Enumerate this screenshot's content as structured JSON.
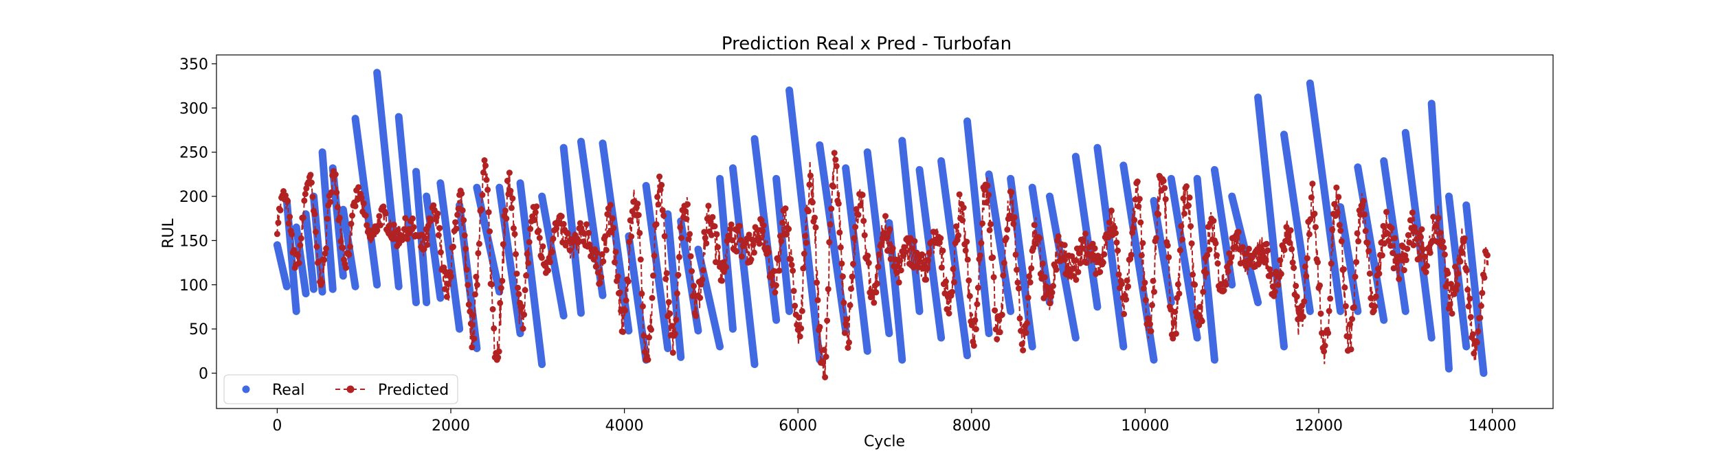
{
  "chart_data": {
    "type": "line",
    "title": "Prediction Real x Pred - Turbofan",
    "xlabel": "Cycle",
    "ylabel": "RUL",
    "xlim": [
      -700,
      14700
    ],
    "ylim": [
      -40,
      360
    ],
    "xticks": [
      0,
      2000,
      4000,
      6000,
      8000,
      10000,
      12000,
      14000
    ],
    "yticks": [
      0,
      50,
      100,
      150,
      200,
      250,
      300,
      350
    ],
    "legend_position": "lower-left",
    "grid": false,
    "colors": {
      "real": "#4169e1",
      "predicted": "#b22222"
    },
    "series": [
      {
        "name": "Real",
        "style": "markers",
        "segments": [
          [
            0,
            145,
            110,
            98
          ],
          [
            110,
            195,
            220,
            70
          ],
          [
            220,
            165,
            330,
            90
          ],
          [
            330,
            180,
            420,
            95
          ],
          [
            420,
            200,
            520,
            92
          ],
          [
            520,
            250,
            640,
            95
          ],
          [
            640,
            232,
            760,
            110
          ],
          [
            760,
            185,
            900,
            98
          ],
          [
            900,
            288,
            1150,
            100
          ],
          [
            1150,
            340,
            1400,
            98
          ],
          [
            1400,
            290,
            1600,
            80
          ],
          [
            1600,
            228,
            1720,
            80
          ],
          [
            1720,
            200,
            1880,
            85
          ],
          [
            1880,
            215,
            2100,
            50
          ],
          [
            2100,
            190,
            2300,
            28
          ],
          [
            2300,
            210,
            2560,
            92
          ],
          [
            2560,
            210,
            2800,
            45
          ],
          [
            2800,
            215,
            3050,
            10
          ],
          [
            3050,
            200,
            3300,
            65
          ],
          [
            3300,
            255,
            3500,
            68
          ],
          [
            3500,
            262,
            3750,
            88
          ],
          [
            3750,
            260,
            4050,
            48
          ],
          [
            4050,
            155,
            4250,
            15
          ],
          [
            4250,
            212,
            4500,
            28
          ],
          [
            4500,
            180,
            4650,
            18
          ],
          [
            4650,
            172,
            4850,
            48
          ],
          [
            4850,
            140,
            5100,
            30
          ],
          [
            5100,
            220,
            5250,
            50
          ],
          [
            5250,
            232,
            5500,
            10
          ],
          [
            5500,
            265,
            5750,
            60
          ],
          [
            5750,
            220,
            5900,
            70
          ],
          [
            5900,
            320,
            6250,
            15
          ],
          [
            6250,
            258,
            6550,
            48
          ],
          [
            6550,
            232,
            6800,
            25
          ],
          [
            6800,
            250,
            7050,
            45
          ],
          [
            7050,
            170,
            7200,
            15
          ],
          [
            7200,
            263,
            7400,
            70
          ],
          [
            7400,
            230,
            7650,
            40
          ],
          [
            7650,
            240,
            7950,
            20
          ],
          [
            7950,
            285,
            8200,
            45
          ],
          [
            8200,
            225,
            8450,
            70
          ],
          [
            8450,
            220,
            8700,
            30
          ],
          [
            8700,
            210,
            8900,
            80
          ],
          [
            8900,
            200,
            9200,
            40
          ],
          [
            9200,
            245,
            9450,
            75
          ],
          [
            9450,
            255,
            9750,
            30
          ],
          [
            9750,
            235,
            10100,
            15
          ],
          [
            10100,
            195,
            10300,
            80
          ],
          [
            10300,
            220,
            10600,
            40
          ],
          [
            10600,
            220,
            10800,
            15
          ],
          [
            10800,
            230,
            11000,
            100
          ],
          [
            11000,
            200,
            11300,
            80
          ],
          [
            11300,
            312,
            11600,
            30
          ],
          [
            11600,
            270,
            11900,
            70
          ],
          [
            11900,
            328,
            12250,
            70
          ],
          [
            12250,
            188,
            12450,
            70
          ],
          [
            12450,
            233,
            12750,
            60
          ],
          [
            12750,
            240,
            13000,
            70
          ],
          [
            13000,
            272,
            13300,
            40
          ],
          [
            13300,
            305,
            13500,
            5
          ],
          [
            13500,
            200,
            13700,
            30
          ],
          [
            13700,
            190,
            13900,
            0
          ]
        ]
      },
      {
        "name": "Predicted",
        "style": "dashed-line-markers",
        "band": [
          [
            0,
            110,
            225
          ],
          [
            600,
            95,
            240
          ],
          [
            1000,
            120,
            230
          ],
          [
            1400,
            90,
            230
          ],
          [
            1800,
            70,
            240
          ],
          [
            2000,
            40,
            230
          ],
          [
            2400,
            0,
            255
          ],
          [
            2800,
            10,
            245
          ],
          [
            3200,
            70,
            240
          ],
          [
            3600,
            50,
            245
          ],
          [
            3900,
            10,
            240
          ],
          [
            4300,
            0,
            225
          ],
          [
            4700,
            20,
            230
          ],
          [
            5100,
            30,
            258
          ],
          [
            5500,
            60,
            240
          ],
          [
            5900,
            10,
            230
          ],
          [
            6300,
            -25,
            265
          ],
          [
            6700,
            30,
            240
          ],
          [
            7100,
            20,
            245
          ],
          [
            7500,
            30,
            230
          ],
          [
            7900,
            10,
            240
          ],
          [
            8300,
            30,
            225
          ],
          [
            8700,
            -5,
            220
          ],
          [
            9100,
            20,
            230
          ],
          [
            9500,
            40,
            240
          ],
          [
            9900,
            10,
            245
          ],
          [
            10300,
            30,
            240
          ],
          [
            10700,
            0,
            235
          ],
          [
            11100,
            40,
            230
          ],
          [
            11500,
            20,
            225
          ],
          [
            11900,
            0,
            230
          ],
          [
            12300,
            10,
            215
          ],
          [
            12700,
            30,
            235
          ],
          [
            13100,
            10,
            290
          ],
          [
            13400,
            20,
            270
          ],
          [
            13700,
            -15,
            190
          ],
          [
            13950,
            0,
            150
          ]
        ]
      }
    ]
  }
}
